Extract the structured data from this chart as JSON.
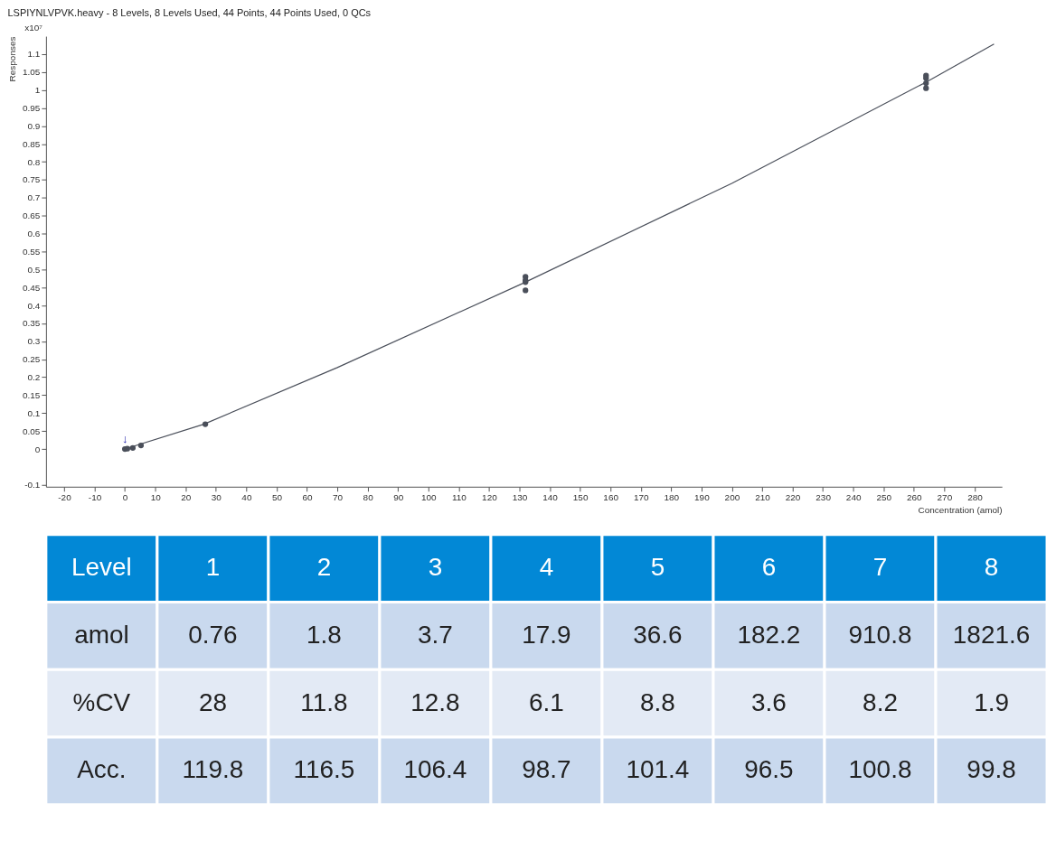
{
  "chart_data": [
    {
      "type": "scatter",
      "title": "LSPIYNLVPVK.heavy - 8 Levels, 8 Levels Used, 44 Points, 44 Points Used, 0 QCs",
      "xlabel": "Concentration (amol)",
      "ylabel": "Responses",
      "annotations": [
        "x10⁷",
        "↓"
      ],
      "xlim": [
        -26,
        289
      ],
      "xticks": [
        -20,
        -10,
        0,
        10,
        20,
        30,
        40,
        50,
        60,
        70,
        80,
        90,
        100,
        110,
        120,
        130,
        140,
        150,
        160,
        170,
        180,
        190,
        200,
        210,
        220,
        230,
        240,
        250,
        260,
        270,
        280
      ],
      "ylim": [
        -0.105,
        1.15
      ],
      "yticks": [
        -0.1,
        0,
        0.05,
        0.1,
        0.15,
        0.2,
        0.25,
        0.3,
        0.35,
        0.4,
        0.45,
        0.5,
        0.55,
        0.6,
        0.65,
        0.7,
        0.75,
        0.8,
        0.85,
        0.9,
        0.95,
        1,
        1.05,
        1.1
      ],
      "grid": false,
      "series": [
        {
          "type": "scatter",
          "marker": "circle",
          "color": "#4a4f5a",
          "x": [
            0,
            0.8,
            2.6,
            5.3,
            26.5,
            132,
            132,
            132,
            132,
            264,
            264,
            264,
            264
          ],
          "values": [
            0,
            0.001,
            0.003,
            0.01,
            0.069,
            0.48,
            0.47,
            0.465,
            0.442,
            1.04,
            1.033,
            1.019,
            1.005
          ]
        },
        {
          "type": "line",
          "color": "#4a4f5a",
          "x": [
            0,
            26,
            70,
            131,
            200,
            264,
            286.4
          ],
          "values": [
            0,
            0.069,
            0.227,
            0.461,
            0.74,
            1.022,
            1.128
          ]
        }
      ]
    },
    {
      "type": "heatmap",
      "data_labels": true,
      "xlabel": "Level",
      "categories": [
        "1",
        "2",
        "3",
        "4",
        "5",
        "6",
        "7",
        "8"
      ],
      "y_categories": [
        "amol",
        "%CV",
        "Acc."
      ],
      "cells": [
        [
          0.76,
          1.8,
          3.7,
          17.9,
          36.6,
          182.2,
          910.8,
          1821.6
        ],
        [
          28,
          11.8,
          12.8,
          6.1,
          8.8,
          3.6,
          8.2,
          1.9
        ],
        [
          119.8,
          116.5,
          106.4,
          98.7,
          101.4,
          96.5,
          100.8,
          99.8
        ]
      ]
    }
  ]
}
